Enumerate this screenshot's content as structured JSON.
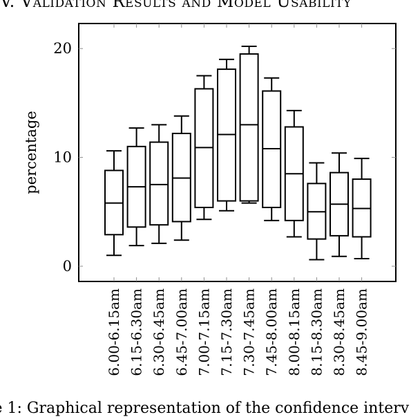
{
  "page": {
    "heading": "V. Validation Results and Model Usability",
    "caption": "re 1: Graphical representation of the confidence interv"
  },
  "chart_data": {
    "type": "box",
    "title": "",
    "xlabel": "",
    "ylabel": "percentage",
    "ylim": [
      -1.4,
      22.3
    ],
    "yticks": [
      0,
      10,
      20
    ],
    "grid": false,
    "categories": [
      "6.00-6.15am",
      "6.15-6.30am",
      "6.30-6.45am",
      "6.45-7.00am",
      "7.00-7.15am",
      "7.15-7.30am",
      "7.30-7.45am",
      "7.45-8.00am",
      "8.00-8.15am",
      "8.15-8.30am",
      "8.30-8.45am",
      "8.45-9.00am"
    ],
    "series": [
      {
        "boxes": [
          {
            "min": 1.0,
            "q1": 2.9,
            "median": 5.8,
            "q3": 8.8,
            "max": 10.6
          },
          {
            "min": 1.9,
            "q1": 3.6,
            "median": 7.3,
            "q3": 11.0,
            "max": 12.7
          },
          {
            "min": 2.1,
            "q1": 3.8,
            "median": 7.5,
            "q3": 11.4,
            "max": 13.0
          },
          {
            "min": 2.4,
            "q1": 4.1,
            "median": 8.1,
            "q3": 12.2,
            "max": 13.8
          },
          {
            "min": 4.3,
            "q1": 5.4,
            "median": 10.9,
            "q3": 16.3,
            "max": 17.5
          },
          {
            "min": 5.1,
            "q1": 6.0,
            "median": 12.1,
            "q3": 18.1,
            "max": 19.0
          },
          {
            "min": 5.8,
            "q1": 6.0,
            "median": 13.0,
            "q3": 19.5,
            "max": 20.2
          },
          {
            "min": 4.2,
            "q1": 5.4,
            "median": 10.8,
            "q3": 16.1,
            "max": 17.3
          },
          {
            "min": 2.7,
            "q1": 4.2,
            "median": 8.5,
            "q3": 12.8,
            "max": 14.3
          },
          {
            "min": 0.6,
            "q1": 2.5,
            "median": 5.0,
            "q3": 7.6,
            "max": 9.5
          },
          {
            "min": 0.9,
            "q1": 2.8,
            "median": 5.7,
            "q3": 8.6,
            "max": 10.4
          },
          {
            "min": 0.7,
            "q1": 2.7,
            "median": 5.3,
            "q3": 8.0,
            "max": 9.9
          }
        ]
      }
    ]
  }
}
